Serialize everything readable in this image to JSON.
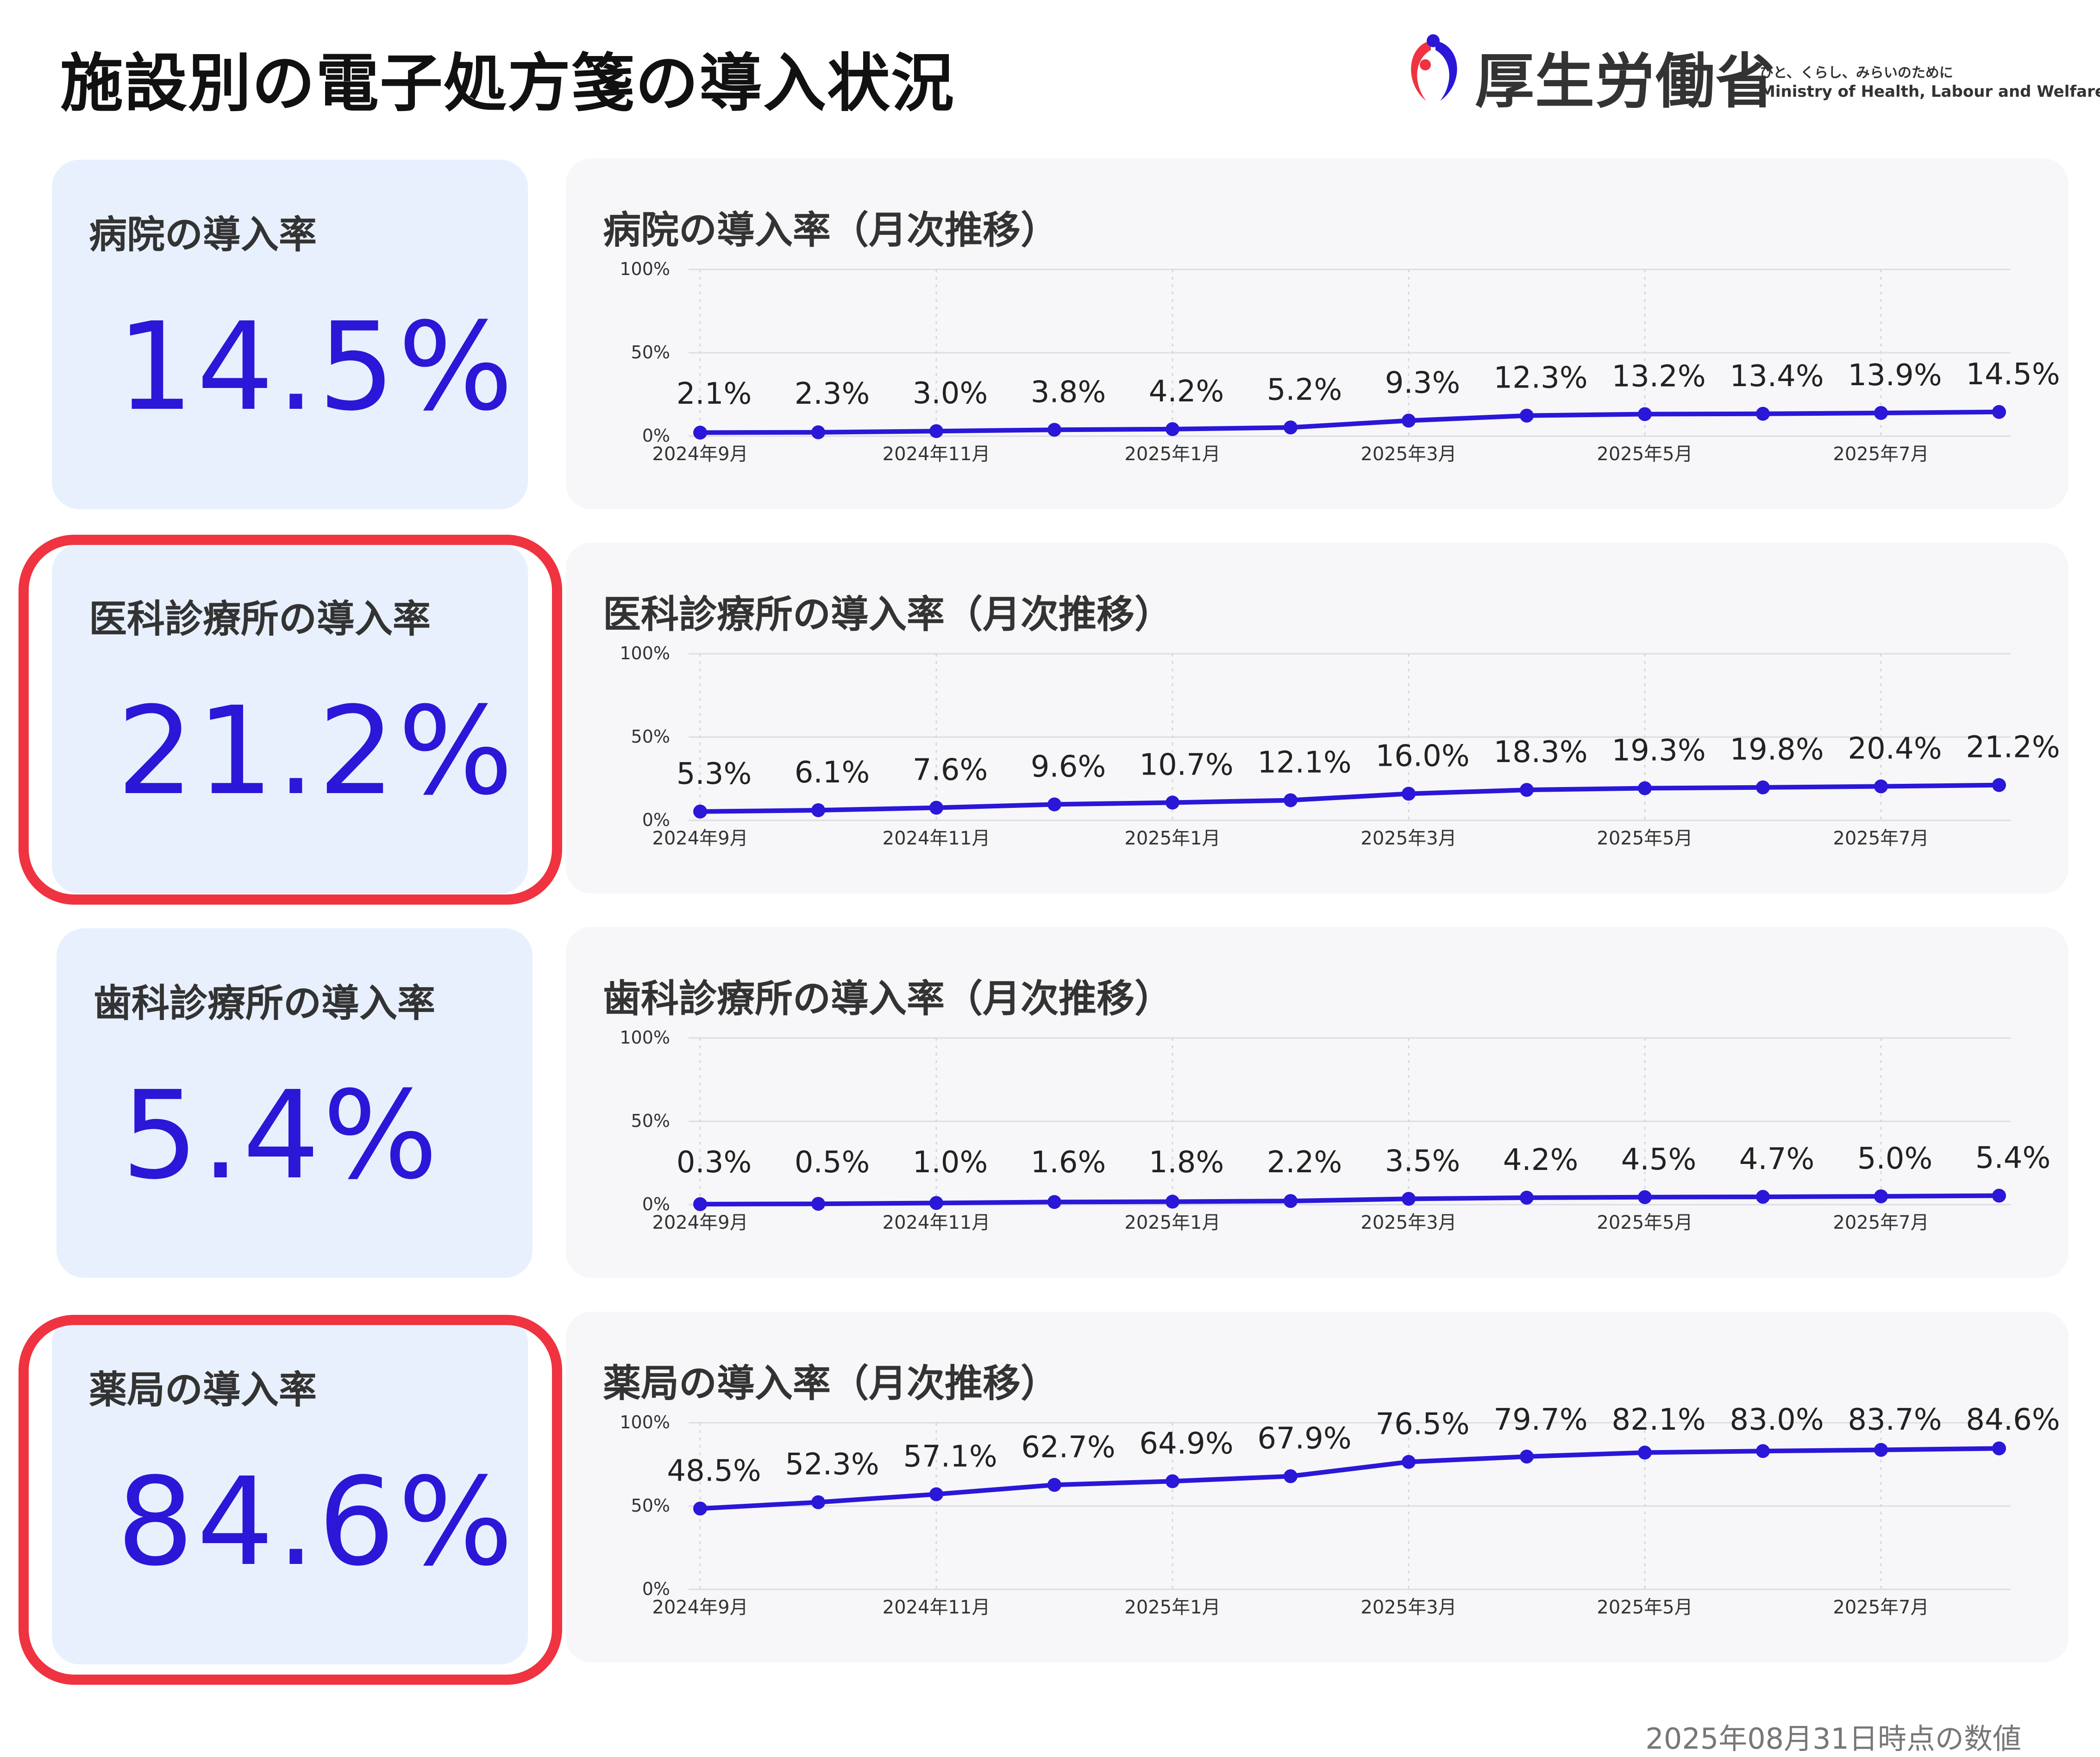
{
  "header": {
    "title": "施設別の電子処方箋の導入状況",
    "brand_name": "厚生労働省",
    "brand_tagline": "ひと、くらし、みらいのために",
    "brand_english": "Ministry of Health, Labour and Welfare"
  },
  "kpis": [
    {
      "label": "病院の導入率",
      "value": "14.5%",
      "highlighted": false
    },
    {
      "label": "医科診療所の導入率",
      "value": "21.2%",
      "highlighted": true
    },
    {
      "label": "歯科診療所の導入率",
      "value": "5.4%",
      "highlighted": false
    },
    {
      "label": "薬局の導入率",
      "value": "84.6%",
      "highlighted": true
    }
  ],
  "colors": {
    "accent": "#2a17d8",
    "highlight_border": "#ef3340",
    "kpi_background": "#e8f0fe",
    "chart_background": "#f7f7f9"
  },
  "chart_data": [
    {
      "type": "line",
      "title": "病院の導入率（月次推移）",
      "x": [
        "2024-09",
        "2024-10",
        "2024-11",
        "2024-12",
        "2025-01",
        "2025-02",
        "2025-03",
        "2025-04",
        "2025-05",
        "2025-06",
        "2025-07",
        "2025-08"
      ],
      "tick_labels": [
        "2024年9月",
        "2024年11月",
        "2025年1月",
        "2025年3月",
        "2025年5月",
        "2025年7月"
      ],
      "y_ticks": [
        "0%",
        "50%",
        "100%"
      ],
      "ylim": [
        0,
        100
      ],
      "values": [
        2.1,
        2.3,
        3.0,
        3.8,
        4.2,
        5.2,
        9.3,
        12.3,
        13.2,
        13.4,
        13.9,
        14.5
      ],
      "data_labels": [
        "2.1%",
        "2.3%",
        "3.0%",
        "3.8%",
        "4.2%",
        "5.2%",
        "9.3%",
        "12.3%",
        "13.2%",
        "13.4%",
        "13.9%",
        "14.5%"
      ],
      "grid": true,
      "legend": "none"
    },
    {
      "type": "line",
      "title": "医科診療所の導入率（月次推移）",
      "x": [
        "2024-09",
        "2024-10",
        "2024-11",
        "2024-12",
        "2025-01",
        "2025-02",
        "2025-03",
        "2025-04",
        "2025-05",
        "2025-06",
        "2025-07",
        "2025-08"
      ],
      "tick_labels": [
        "2024年9月",
        "2024年11月",
        "2025年1月",
        "2025年3月",
        "2025年5月",
        "2025年7月"
      ],
      "y_ticks": [
        "0%",
        "50%",
        "100%"
      ],
      "ylim": [
        0,
        100
      ],
      "values": [
        5.3,
        6.1,
        7.6,
        9.6,
        10.7,
        12.1,
        16.0,
        18.3,
        19.3,
        19.8,
        20.4,
        21.2
      ],
      "data_labels": [
        "5.3%",
        "6.1%",
        "7.6%",
        "9.6%",
        "10.7%",
        "12.1%",
        "16.0%",
        "18.3%",
        "19.3%",
        "19.8%",
        "20.4%",
        "21.2%"
      ],
      "grid": true,
      "legend": "none"
    },
    {
      "type": "line",
      "title": "歯科診療所の導入率（月次推移）",
      "x": [
        "2024-09",
        "2024-10",
        "2024-11",
        "2024-12",
        "2025-01",
        "2025-02",
        "2025-03",
        "2025-04",
        "2025-05",
        "2025-06",
        "2025-07",
        "2025-08"
      ],
      "tick_labels": [
        "2024年9月",
        "2024年11月",
        "2025年1月",
        "2025年3月",
        "2025年5月",
        "2025年7月"
      ],
      "y_ticks": [
        "0%",
        "50%",
        "100%"
      ],
      "ylim": [
        0,
        100
      ],
      "values": [
        0.3,
        0.5,
        1.0,
        1.6,
        1.8,
        2.2,
        3.5,
        4.2,
        4.5,
        4.7,
        5.0,
        5.4
      ],
      "data_labels": [
        "0.3%",
        "0.5%",
        "1.0%",
        "1.6%",
        "1.8%",
        "2.2%",
        "3.5%",
        "4.2%",
        "4.5%",
        "4.7%",
        "5.0%",
        "5.4%"
      ],
      "grid": true,
      "legend": "none"
    },
    {
      "type": "line",
      "title": "薬局の導入率（月次推移）",
      "x": [
        "2024-09",
        "2024-10",
        "2024-11",
        "2024-12",
        "2025-01",
        "2025-02",
        "2025-03",
        "2025-04",
        "2025-05",
        "2025-06",
        "2025-07",
        "2025-08"
      ],
      "tick_labels": [
        "2024年9月",
        "2024年11月",
        "2025年1月",
        "2025年3月",
        "2025年5月",
        "2025年7月"
      ],
      "y_ticks": [
        "0%",
        "50%",
        "100%"
      ],
      "ylim": [
        0,
        100
      ],
      "values": [
        48.5,
        52.3,
        57.1,
        62.7,
        64.9,
        67.9,
        76.5,
        79.7,
        82.1,
        83.0,
        83.7,
        84.6
      ],
      "data_labels": [
        "48.5%",
        "52.3%",
        "57.1%",
        "62.7%",
        "64.9%",
        "67.9%",
        "76.5%",
        "79.7%",
        "82.1%",
        "83.0%",
        "83.7%",
        "84.6%"
      ],
      "grid": true,
      "legend": "none"
    }
  ],
  "footer": {
    "note": "2025年08月31日時点の数値"
  }
}
